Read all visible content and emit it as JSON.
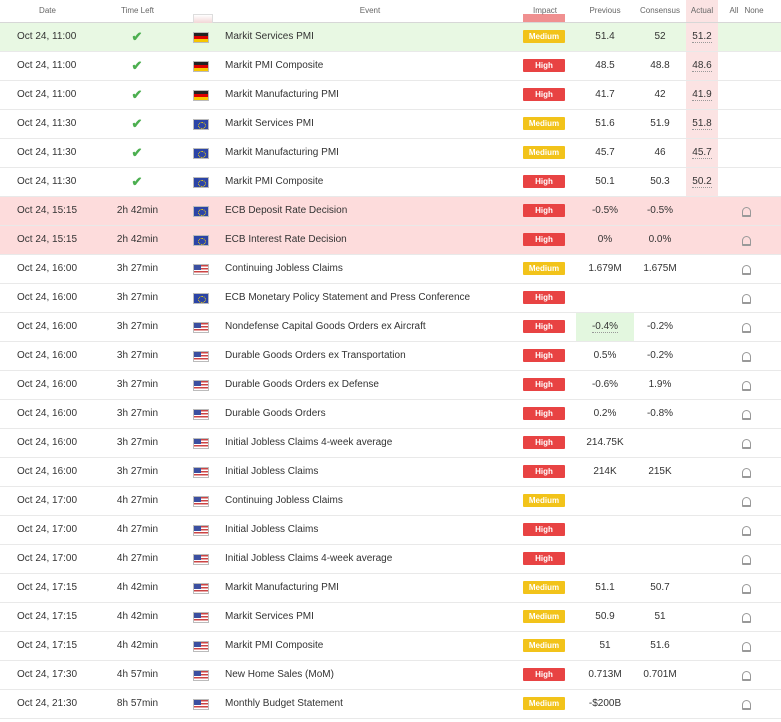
{
  "header": {
    "date": "Date",
    "time_left": "Time Left",
    "event": "Event",
    "impact": "Impact",
    "previous": "Previous",
    "consensus": "Consensus",
    "actual": "Actual",
    "all": "All",
    "none": "None"
  },
  "colors": {
    "high": "#e84343",
    "medium": "#f2c31a",
    "green_row": "#e8f8e3",
    "red_row": "#fddcdc",
    "check": "#4caf50"
  },
  "rows": [
    {
      "date": "Oct 24, 11:00",
      "time_left": "",
      "done": true,
      "flag": "de",
      "event": "Markit Services PMI",
      "impact": "Medium",
      "previous": "51.4",
      "consensus": "52",
      "actual": "51.2",
      "style": "green"
    },
    {
      "date": "Oct 24, 11:00",
      "time_left": "",
      "done": true,
      "flag": "de",
      "event": "Markit PMI Composite",
      "impact": "High",
      "previous": "48.5",
      "consensus": "48.8",
      "actual": "48.6",
      "style": ""
    },
    {
      "date": "Oct 24, 11:00",
      "time_left": "",
      "done": true,
      "flag": "de",
      "event": "Markit Manufacturing PMI",
      "impact": "High",
      "previous": "41.7",
      "consensus": "42",
      "actual": "41.9",
      "style": ""
    },
    {
      "date": "Oct 24, 11:30",
      "time_left": "",
      "done": true,
      "flag": "eu",
      "event": "Markit Services PMI",
      "impact": "Medium",
      "previous": "51.6",
      "consensus": "51.9",
      "actual": "51.8",
      "style": ""
    },
    {
      "date": "Oct 24, 11:30",
      "time_left": "",
      "done": true,
      "flag": "eu",
      "event": "Markit Manufacturing PMI",
      "impact": "Medium",
      "previous": "45.7",
      "consensus": "46",
      "actual": "45.7",
      "style": ""
    },
    {
      "date": "Oct 24, 11:30",
      "time_left": "",
      "done": true,
      "flag": "eu",
      "event": "Markit PMI Composite",
      "impact": "High",
      "previous": "50.1",
      "consensus": "50.3",
      "actual": "50.2",
      "style": ""
    },
    {
      "date": "Oct 24, 15:15",
      "time_left": "2h 42min",
      "done": false,
      "flag": "eu",
      "event": "ECB Deposit Rate Decision",
      "impact": "High",
      "previous": "-0.5%",
      "consensus": "-0.5%",
      "actual": "",
      "style": "red"
    },
    {
      "date": "Oct 24, 15:15",
      "time_left": "2h 42min",
      "done": false,
      "flag": "eu",
      "event": "ECB Interest Rate Decision",
      "impact": "High",
      "previous": "0%",
      "consensus": "0.0%",
      "actual": "",
      "style": "red"
    },
    {
      "date": "Oct 24, 16:00",
      "time_left": "3h 27min",
      "done": false,
      "flag": "us",
      "event": "Continuing Jobless Claims",
      "impact": "Medium",
      "previous": "1.679M",
      "consensus": "1.675M",
      "actual": "",
      "style": ""
    },
    {
      "date": "Oct 24, 16:00",
      "time_left": "3h 27min",
      "done": false,
      "flag": "eu",
      "event": "ECB Monetary Policy Statement and Press Conference",
      "impact": "High",
      "previous": "",
      "consensus": "",
      "actual": "",
      "style": ""
    },
    {
      "date": "Oct 24, 16:00",
      "time_left": "3h 27min",
      "done": false,
      "flag": "us",
      "event": "Nondefense Capital Goods Orders ex Aircraft",
      "impact": "High",
      "previous": "-0.4%",
      "consensus": "-0.2%",
      "actual": "",
      "style": "",
      "prev_green": true
    },
    {
      "date": "Oct 24, 16:00",
      "time_left": "3h 27min",
      "done": false,
      "flag": "us",
      "event": "Durable Goods Orders ex Transportation",
      "impact": "High",
      "previous": "0.5%",
      "consensus": "-0.2%",
      "actual": "",
      "style": ""
    },
    {
      "date": "Oct 24, 16:00",
      "time_left": "3h 27min",
      "done": false,
      "flag": "us",
      "event": "Durable Goods Orders ex Defense",
      "impact": "High",
      "previous": "-0.6%",
      "consensus": "1.9%",
      "actual": "",
      "style": ""
    },
    {
      "date": "Oct 24, 16:00",
      "time_left": "3h 27min",
      "done": false,
      "flag": "us",
      "event": "Durable Goods Orders",
      "impact": "High",
      "previous": "0.2%",
      "consensus": "-0.8%",
      "actual": "",
      "style": ""
    },
    {
      "date": "Oct 24, 16:00",
      "time_left": "3h 27min",
      "done": false,
      "flag": "us",
      "event": "Initial Jobless Claims 4-week average",
      "impact": "High",
      "previous": "214.75K",
      "consensus": "",
      "actual": "",
      "style": ""
    },
    {
      "date": "Oct 24, 16:00",
      "time_left": "3h 27min",
      "done": false,
      "flag": "us",
      "event": "Initial Jobless Claims",
      "impact": "High",
      "previous": "214K",
      "consensus": "215K",
      "actual": "",
      "style": ""
    },
    {
      "date": "Oct 24, 17:00",
      "time_left": "4h 27min",
      "done": false,
      "flag": "us",
      "event": "Continuing Jobless Claims",
      "impact": "Medium",
      "previous": "",
      "consensus": "",
      "actual": "",
      "style": ""
    },
    {
      "date": "Oct 24, 17:00",
      "time_left": "4h 27min",
      "done": false,
      "flag": "us",
      "event": "Initial Jobless Claims",
      "impact": "High",
      "previous": "",
      "consensus": "",
      "actual": "",
      "style": ""
    },
    {
      "date": "Oct 24, 17:00",
      "time_left": "4h 27min",
      "done": false,
      "flag": "us",
      "event": "Initial Jobless Claims 4-week average",
      "impact": "High",
      "previous": "",
      "consensus": "",
      "actual": "",
      "style": ""
    },
    {
      "date": "Oct 24, 17:15",
      "time_left": "4h 42min",
      "done": false,
      "flag": "us",
      "event": "Markit Manufacturing PMI",
      "impact": "Medium",
      "previous": "51.1",
      "consensus": "50.7",
      "actual": "",
      "style": ""
    },
    {
      "date": "Oct 24, 17:15",
      "time_left": "4h 42min",
      "done": false,
      "flag": "us",
      "event": "Markit Services PMI",
      "impact": "Medium",
      "previous": "50.9",
      "consensus": "51",
      "actual": "",
      "style": ""
    },
    {
      "date": "Oct 24, 17:15",
      "time_left": "4h 42min",
      "done": false,
      "flag": "us",
      "event": "Markit PMI Composite",
      "impact": "Medium",
      "previous": "51",
      "consensus": "51.6",
      "actual": "",
      "style": ""
    },
    {
      "date": "Oct 24, 17:30",
      "time_left": "4h 57min",
      "done": false,
      "flag": "us",
      "event": "New Home Sales (MoM)",
      "impact": "High",
      "previous": "0.713M",
      "consensus": "0.701M",
      "actual": "",
      "style": ""
    },
    {
      "date": "Oct 24, 21:30",
      "time_left": "8h 57min",
      "done": false,
      "flag": "us",
      "event": "Monthly Budget Statement",
      "impact": "Medium",
      "previous": "-$200B",
      "consensus": "",
      "actual": "",
      "style": ""
    }
  ]
}
